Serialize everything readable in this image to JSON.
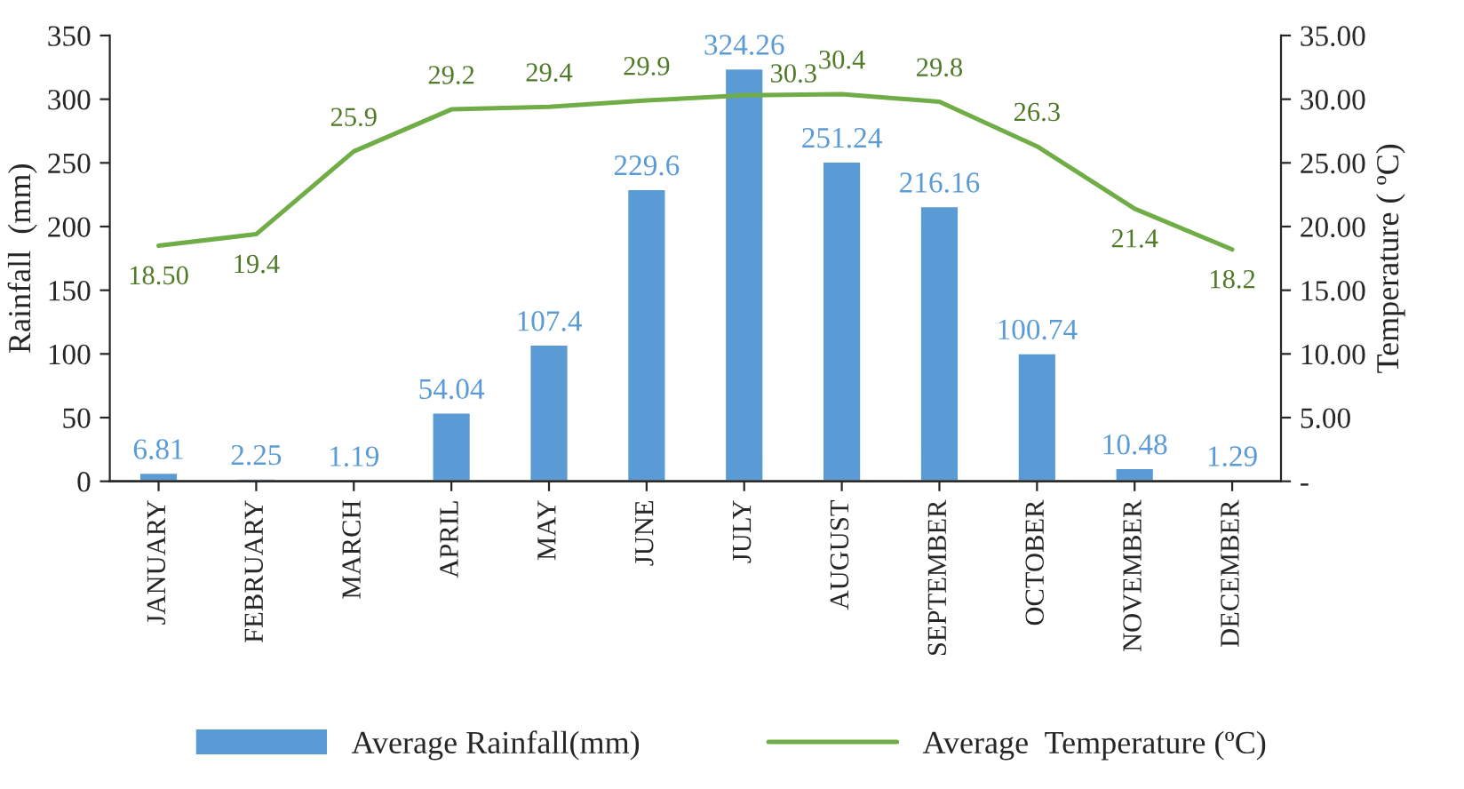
{
  "chart_data": {
    "type": "bar",
    "categories": [
      "JANUARY",
      "FEBRUARY",
      "MARCH",
      "APRIL",
      "MAY",
      "JUNE",
      "JULY",
      "AUGUST",
      "SEPTEMBER",
      "OCTOBER",
      "NOVEMBER",
      "DECEMBER"
    ],
    "series": [
      {
        "name": "Average Rainfall(mm)",
        "color": "#5b9bd5",
        "values": [
          6.81,
          2.25,
          1.19,
          54.04,
          107.4,
          229.6,
          324.26,
          251.24,
          216.16,
          100.74,
          10.48,
          1.29
        ],
        "value_labels": [
          "6.81",
          "2.25",
          "1.19",
          "54.04",
          "107.4",
          "229.6",
          "324.26",
          "251.24",
          "216.16",
          "100.74",
          "10.48",
          "1.29"
        ]
      },
      {
        "name": "Average  Temperature (ºC)",
        "type": "line",
        "axis": "y2",
        "color": "#70ad47",
        "values": [
          18.5,
          19.4,
          25.9,
          29.2,
          29.4,
          29.9,
          30.3,
          30.4,
          29.8,
          26.3,
          21.4,
          18.2
        ],
        "value_labels": [
          "18.50",
          "19.4",
          "25.9",
          "29.2",
          "29.4",
          "29.9",
          "30.3",
          "30.4",
          "29.8",
          "26.3",
          "21.4",
          "18.2"
        ]
      }
    ],
    "ylabel": "Rainfall  (mm)",
    "y2label": "Temperature ( ºC)",
    "ylim": [
      0,
      350
    ],
    "yticks": [
      0,
      50,
      100,
      150,
      200,
      250,
      300,
      350
    ],
    "y2lim": [
      0,
      35
    ],
    "y2ticks": [
      {
        "value": 0,
        "label": "-"
      },
      {
        "value": 5,
        "label": "5.00"
      },
      {
        "value": 10,
        "label": "10.00"
      },
      {
        "value": 15,
        "label": "15.00"
      },
      {
        "value": 20,
        "label": "20.00"
      },
      {
        "value": 25,
        "label": "25.00"
      },
      {
        "value": 30,
        "label": "30.00"
      },
      {
        "value": 35,
        "label": "35.00"
      }
    ],
    "legend": "bottom",
    "grid": false,
    "marker": "none",
    "line_style": "solid"
  }
}
